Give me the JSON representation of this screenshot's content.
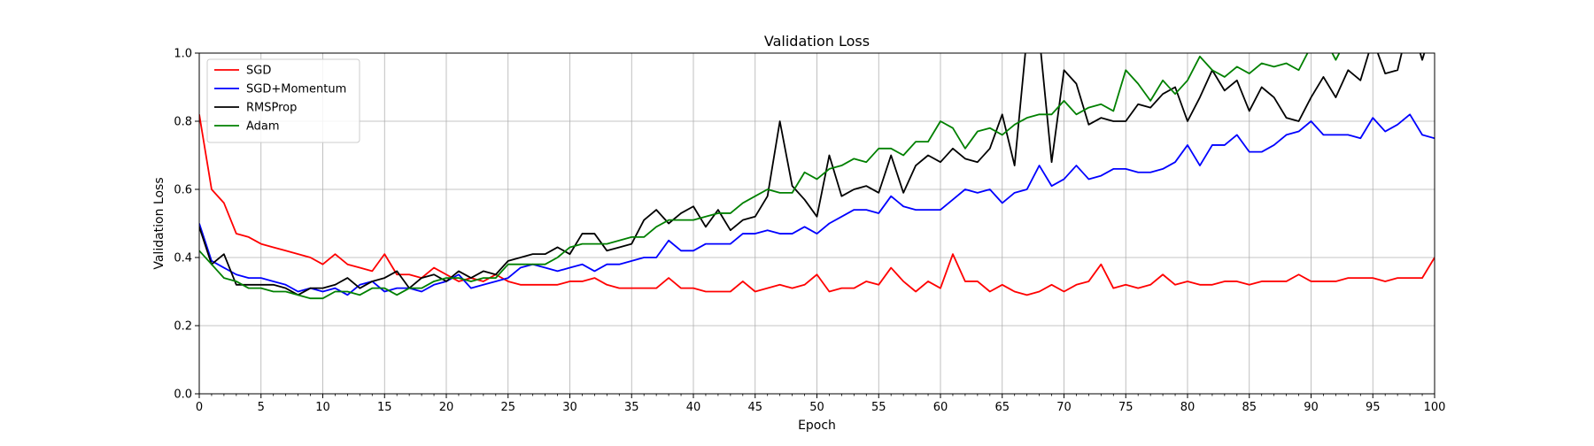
{
  "chart_data": {
    "type": "line",
    "title": "Validation Loss",
    "xlabel": "Epoch",
    "ylabel": "Validation Loss",
    "xlim": [
      0,
      100
    ],
    "ylim": [
      0,
      1.0
    ],
    "grid": true,
    "legend_position": "top-left",
    "x_ticks": [
      "0",
      "5",
      "10",
      "15",
      "20",
      "25",
      "30",
      "35",
      "40",
      "45",
      "50",
      "55",
      "60",
      "65",
      "70",
      "75",
      "80",
      "85",
      "90",
      "95",
      "100"
    ],
    "y_ticks": [
      "0.0",
      "0.2",
      "0.4",
      "0.6",
      "0.8",
      "1.0"
    ],
    "series": [
      {
        "name": "SGD",
        "color": "#ff0000",
        "x_step": 1,
        "values": [
          0.82,
          0.6,
          0.56,
          0.47,
          0.46,
          0.44,
          0.43,
          0.42,
          0.41,
          0.4,
          0.38,
          0.41,
          0.38,
          0.37,
          0.36,
          0.41,
          0.35,
          0.35,
          0.34,
          0.37,
          0.35,
          0.33,
          0.34,
          0.33,
          0.35,
          0.33,
          0.32,
          0.32,
          0.32,
          0.32,
          0.33,
          0.33,
          0.34,
          0.32,
          0.31,
          0.31,
          0.31,
          0.31,
          0.34,
          0.31,
          0.31,
          0.3,
          0.3,
          0.3,
          0.33,
          0.3,
          0.31,
          0.32,
          0.31,
          0.32,
          0.35,
          0.3,
          0.31,
          0.31,
          0.33,
          0.32,
          0.37,
          0.33,
          0.3,
          0.33,
          0.31,
          0.41,
          0.33,
          0.33,
          0.3,
          0.32,
          0.3,
          0.29,
          0.3,
          0.32,
          0.3,
          0.32,
          0.33,
          0.38,
          0.31,
          0.32,
          0.31,
          0.32,
          0.35,
          0.32,
          0.33,
          0.32,
          0.32,
          0.33,
          0.33,
          0.32,
          0.33,
          0.33,
          0.33,
          0.35,
          0.33,
          0.33,
          0.33,
          0.34,
          0.34,
          0.34,
          0.33,
          0.34,
          0.34,
          0.34,
          0.4
        ]
      },
      {
        "name": "SGD+Momentum",
        "color": "#0000ff",
        "x_step": 1,
        "values": [
          0.5,
          0.39,
          0.37,
          0.35,
          0.34,
          0.34,
          0.33,
          0.32,
          0.3,
          0.31,
          0.3,
          0.31,
          0.29,
          0.32,
          0.33,
          0.3,
          0.31,
          0.31,
          0.3,
          0.32,
          0.33,
          0.35,
          0.31,
          0.32,
          0.33,
          0.34,
          0.37,
          0.38,
          0.37,
          0.36,
          0.37,
          0.38,
          0.36,
          0.38,
          0.38,
          0.39,
          0.4,
          0.4,
          0.45,
          0.42,
          0.42,
          0.44,
          0.44,
          0.44,
          0.47,
          0.47,
          0.48,
          0.47,
          0.47,
          0.49,
          0.47,
          0.5,
          0.52,
          0.54,
          0.54,
          0.53,
          0.58,
          0.55,
          0.54,
          0.54,
          0.54,
          0.57,
          0.6,
          0.59,
          0.6,
          0.56,
          0.59,
          0.6,
          0.67,
          0.61,
          0.63,
          0.67,
          0.63,
          0.64,
          0.66,
          0.66,
          0.65,
          0.65,
          0.66,
          0.68,
          0.73,
          0.67,
          0.73,
          0.73,
          0.76,
          0.71,
          0.71,
          0.73,
          0.76,
          0.77,
          0.8,
          0.76,
          0.76,
          0.76,
          0.75,
          0.81,
          0.77,
          0.79,
          0.82,
          0.76,
          0.75
        ]
      },
      {
        "name": "RMSProp",
        "color": "#000000",
        "x_step": 1,
        "values": [
          0.49,
          0.38,
          0.41,
          0.32,
          0.32,
          0.32,
          0.32,
          0.31,
          0.29,
          0.31,
          0.31,
          0.32,
          0.34,
          0.31,
          0.33,
          0.34,
          0.36,
          0.31,
          0.34,
          0.35,
          0.33,
          0.36,
          0.34,
          0.36,
          0.35,
          0.39,
          0.4,
          0.41,
          0.41,
          0.43,
          0.41,
          0.47,
          0.47,
          0.42,
          0.43,
          0.44,
          0.51,
          0.54,
          0.5,
          0.53,
          0.55,
          0.49,
          0.54,
          0.48,
          0.51,
          0.52,
          0.58,
          0.8,
          0.61,
          0.57,
          0.52,
          0.7,
          0.58,
          0.6,
          0.61,
          0.59,
          0.7,
          0.59,
          0.67,
          0.7,
          0.68,
          0.72,
          0.69,
          0.68,
          0.72,
          0.82,
          0.67,
          1.05,
          1.05,
          0.68,
          0.95,
          0.91,
          0.79,
          0.81,
          0.8,
          0.8,
          0.85,
          0.84,
          0.88,
          0.9,
          0.8,
          0.87,
          0.95,
          0.89,
          0.92,
          0.83,
          0.9,
          0.87,
          0.81,
          0.8,
          0.87,
          0.93,
          0.87,
          0.95,
          0.92,
          1.04,
          0.94,
          0.95,
          1.1,
          0.98,
          1.1
        ]
      },
      {
        "name": "Adam",
        "color": "#008000",
        "x_step": 1,
        "values": [
          0.42,
          0.38,
          0.34,
          0.33,
          0.31,
          0.31,
          0.3,
          0.3,
          0.29,
          0.28,
          0.28,
          0.3,
          0.3,
          0.29,
          0.31,
          0.31,
          0.29,
          0.31,
          0.31,
          0.33,
          0.34,
          0.34,
          0.33,
          0.34,
          0.34,
          0.38,
          0.38,
          0.38,
          0.38,
          0.4,
          0.43,
          0.44,
          0.44,
          0.44,
          0.45,
          0.46,
          0.46,
          0.49,
          0.51,
          0.51,
          0.51,
          0.52,
          0.53,
          0.53,
          0.56,
          0.58,
          0.6,
          0.59,
          0.59,
          0.65,
          0.63,
          0.66,
          0.67,
          0.69,
          0.68,
          0.72,
          0.72,
          0.7,
          0.74,
          0.74,
          0.8,
          0.78,
          0.72,
          0.77,
          0.78,
          0.76,
          0.79,
          0.81,
          0.82,
          0.82,
          0.86,
          0.82,
          0.84,
          0.85,
          0.83,
          0.95,
          0.91,
          0.86,
          0.92,
          0.88,
          0.92,
          0.99,
          0.95,
          0.93,
          0.96,
          0.94,
          0.97,
          0.96,
          0.97,
          0.95,
          1.02,
          1.05,
          0.98,
          1.05,
          1.05,
          1.05,
          1.05,
          1.05,
          1.05,
          1.05,
          1.05
        ]
      }
    ]
  }
}
